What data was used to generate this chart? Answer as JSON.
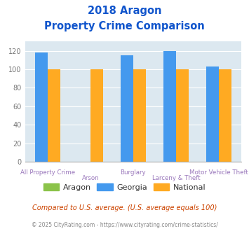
{
  "title_line1": "2018 Aragon",
  "title_line2": "Property Crime Comparison",
  "categories": [
    "All Property Crime",
    "Arson",
    "Burglary",
    "Larceny & Theft",
    "Motor Vehicle Theft"
  ],
  "category_labels_row1": [
    "",
    "Arson",
    "",
    "Larceny & Theft",
    ""
  ],
  "category_labels_row2": [
    "All Property Crime",
    "",
    "Burglary",
    "",
    "Motor Vehicle Theft"
  ],
  "aragon_values": [
    0,
    0,
    0,
    0,
    0
  ],
  "georgia_values": [
    118,
    0,
    115,
    120,
    103
  ],
  "national_values": [
    100,
    100,
    100,
    100,
    100
  ],
  "aragon_color": "#8bc34a",
  "georgia_color": "#4499ee",
  "national_color": "#ffaa22",
  "ylim": [
    0,
    130
  ],
  "yticks": [
    0,
    20,
    40,
    60,
    80,
    100,
    120
  ],
  "bg_color": "#dce8f0",
  "title_color": "#1155cc",
  "xlabel_color": "#9977bb",
  "footnote1": "Compared to U.S. average. (U.S. average equals 100)",
  "footnote2": "© 2025 CityRating.com - https://www.cityrating.com/crime-statistics/",
  "footnote1_color": "#cc4400",
  "footnote2_color": "#888888",
  "legend_labels": [
    "Aragon",
    "Georgia",
    "National"
  ]
}
